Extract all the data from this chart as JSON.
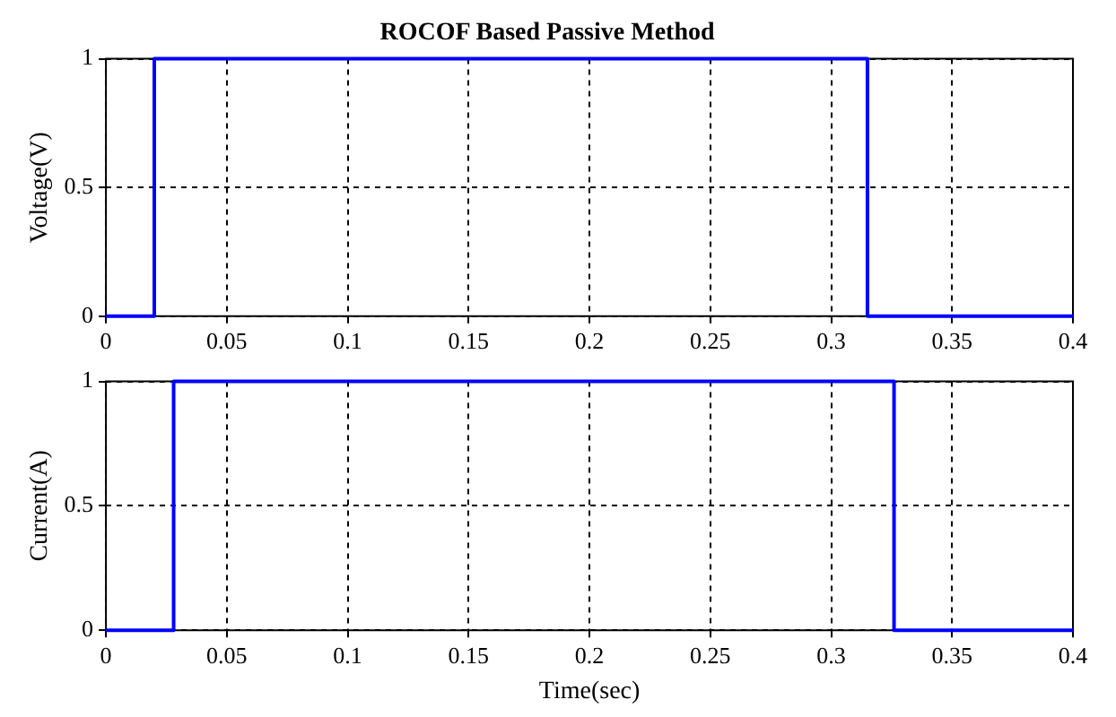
{
  "chart_data": [
    {
      "type": "step",
      "title": "ROCOF Based Passive Method",
      "ylabel": "Voltage(V)",
      "x": [
        0,
        0.02,
        0.315,
        0.4
      ],
      "series": [
        {
          "color": "#0000ff",
          "values": [
            0,
            1,
            0,
            0
          ]
        }
      ],
      "xlim": [
        0,
        0.4
      ],
      "xticks": [
        0,
        0.05,
        0.1,
        0.15,
        0.2,
        0.25,
        0.3,
        0.35,
        0.4
      ],
      "ylim": [
        0,
        1
      ],
      "yticks": [
        0,
        0.5,
        1
      ],
      "grid": true,
      "legend": false
    },
    {
      "type": "step",
      "xlabel": "Time(sec)",
      "ylabel": "Current(A)",
      "x": [
        0,
        0.028,
        0.326,
        0.4
      ],
      "series": [
        {
          "color": "#0000ff",
          "values": [
            0,
            1,
            0,
            0
          ]
        }
      ],
      "xlim": [
        0,
        0.4
      ],
      "xticks": [
        0,
        0.05,
        0.1,
        0.15,
        0.2,
        0.25,
        0.3,
        0.35,
        0.4
      ],
      "ylim": [
        0,
        1
      ],
      "yticks": [
        0,
        0.5,
        1
      ],
      "grid": true,
      "legend": false
    }
  ]
}
